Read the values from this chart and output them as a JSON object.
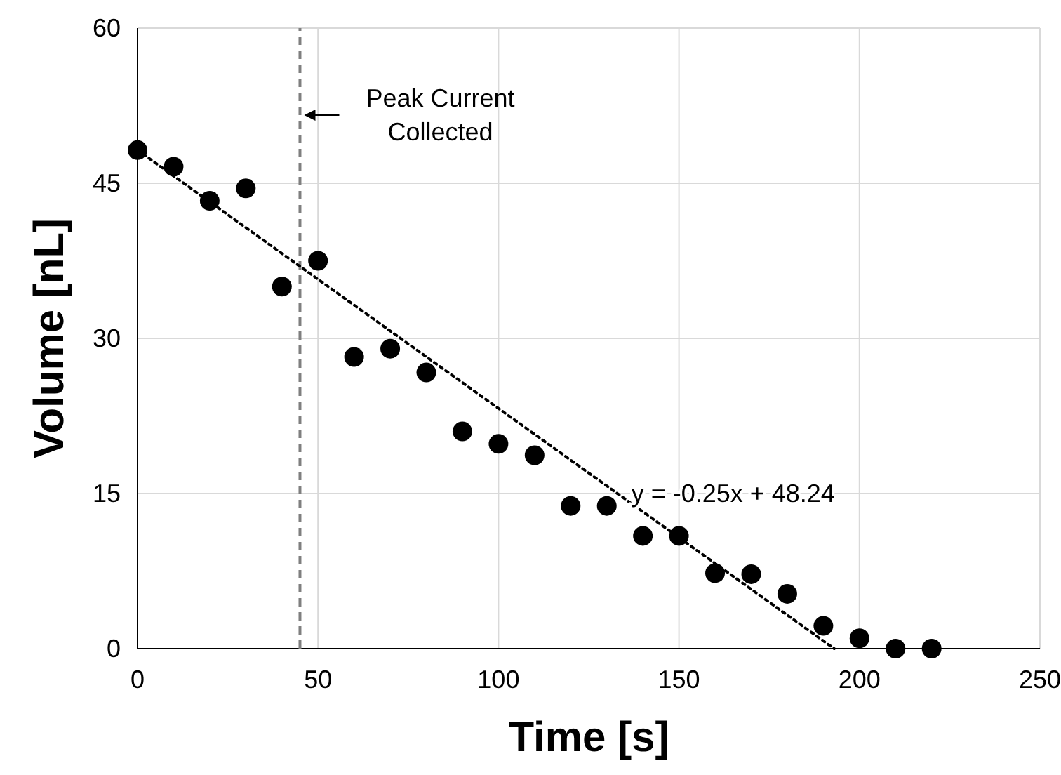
{
  "chart_data": {
    "type": "scatter",
    "xlabel": "Time [s]",
    "ylabel": "Volume [nL]",
    "xlim": [
      0,
      250
    ],
    "xticks": [
      0,
      50,
      100,
      150,
      200,
      250
    ],
    "ylim": [
      0,
      60
    ],
    "yticks": [
      0,
      15,
      30,
      45,
      60
    ],
    "grid": true,
    "series": [
      {
        "color": "#000000",
        "marker": "circle",
        "x": [
          0,
          10,
          20,
          30,
          40,
          50,
          60,
          70,
          80,
          90,
          100,
          110,
          120,
          130,
          140,
          150,
          160,
          170,
          180,
          190,
          200,
          210,
          220
        ],
        "values": [
          48.2,
          46.6,
          43.3,
          44.5,
          35.0,
          37.5,
          28.2,
          29.0,
          26.7,
          21.0,
          19.8,
          18.7,
          13.8,
          13.8,
          10.9,
          10.9,
          7.3,
          7.2,
          5.3,
          2.2,
          1.0,
          0,
          0
        ]
      },
      {
        "type": "line",
        "color": "#000000",
        "line_style": "dotted",
        "marker": "none",
        "x": [
          0,
          193
        ],
        "values": [
          48.2,
          0
        ]
      }
    ],
    "ref_lines": [
      {
        "axis": "x",
        "value": 45,
        "label": "Peak Current\nCollected",
        "color": "#7f7f7f",
        "line_style": "dashed"
      }
    ],
    "annotations": [
      "y = -0.25x + 48.24"
    ]
  }
}
